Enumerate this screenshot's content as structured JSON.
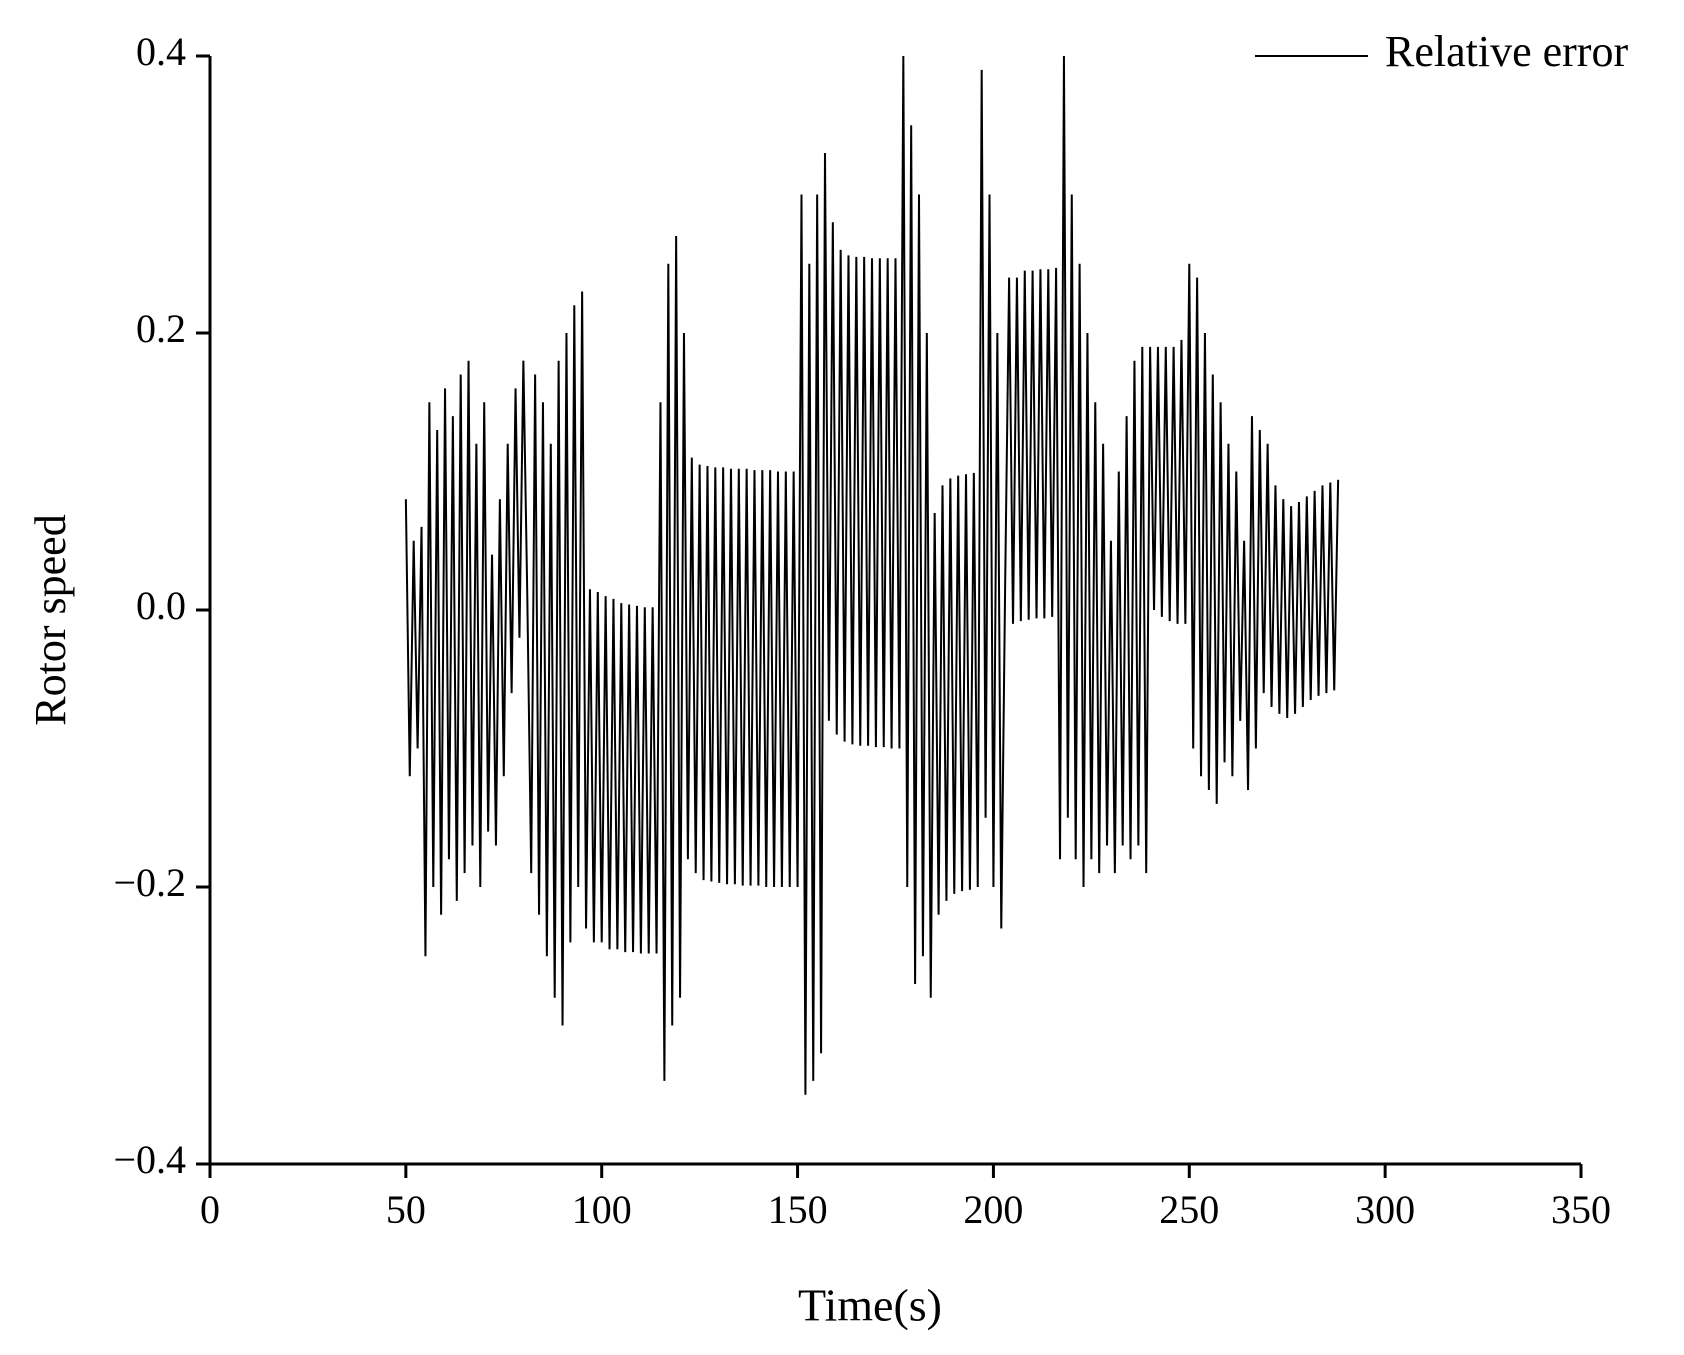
{
  "chart_data": {
    "type": "line",
    "x_label": "Time(s)",
    "y_label": "Rotor speed",
    "xlim": [
      0,
      350
    ],
    "xticks": [
      0,
      50,
      100,
      150,
      200,
      250,
      300,
      350
    ],
    "ylim": [
      -0.4,
      0.4
    ],
    "yticks": [
      {
        "value": -0.4,
        "label": "−0.4"
      },
      {
        "value": -0.2,
        "label": "−0.2"
      },
      {
        "value": 0,
        "label": "0.0"
      },
      0.2,
      0.4
    ],
    "legend": "upper right",
    "x": [
      50,
      51,
      52,
      53,
      54,
      55,
      56,
      57,
      58,
      59,
      60,
      61,
      62,
      63,
      64,
      65,
      66,
      67,
      68,
      69,
      70,
      71,
      72,
      73,
      74,
      75,
      76,
      77,
      78,
      79,
      80,
      81,
      82,
      83,
      84,
      85,
      86,
      87,
      88,
      89,
      90,
      91,
      92,
      93,
      94,
      95,
      96,
      97,
      98,
      99,
      100,
      101,
      102,
      103,
      104,
      105,
      106,
      107,
      108,
      109,
      110,
      111,
      112,
      113,
      114,
      115,
      116,
      117,
      118,
      119,
      120,
      121,
      122,
      123,
      124,
      125,
      126,
      127,
      128,
      129,
      130,
      131,
      132,
      133,
      134,
      135,
      136,
      137,
      138,
      139,
      140,
      141,
      142,
      143,
      144,
      145,
      146,
      147,
      148,
      149,
      150,
      151,
      152,
      153,
      154,
      155,
      156,
      157,
      158,
      159,
      160,
      161,
      162,
      163,
      164,
      165,
      166,
      167,
      168,
      169,
      170,
      171,
      172,
      173,
      174,
      175,
      176,
      177,
      178,
      179,
      180,
      181,
      182,
      183,
      184,
      185,
      186,
      187,
      188,
      189,
      190,
      191,
      192,
      193,
      194,
      195,
      196,
      197,
      198,
      199,
      200,
      201,
      202,
      203,
      204,
      205,
      206,
      207,
      208,
      209,
      210,
      211,
      212,
      213,
      214,
      215,
      216,
      217,
      218,
      219,
      220,
      221,
      222,
      223,
      224,
      225,
      226,
      227,
      228,
      229,
      230,
      231,
      232,
      233,
      234,
      235,
      236,
      237,
      238,
      239,
      240,
      241,
      242,
      243,
      244,
      245,
      246,
      247,
      248,
      249,
      250,
      251,
      252,
      253,
      254,
      255,
      256,
      257,
      258,
      259,
      260,
      261,
      262,
      263,
      264,
      265,
      266,
      267,
      268,
      269,
      270,
      271,
      272,
      273,
      274,
      275,
      276,
      277,
      278,
      279,
      280,
      281,
      282,
      283,
      284,
      285,
      286,
      287,
      288
    ],
    "series": [
      {
        "name": "Relative error",
        "color": "#000000",
        "values": [
          0.08,
          -0.12,
          0.05,
          -0.1,
          0.06,
          -0.25,
          0.15,
          -0.2,
          0.13,
          -0.22,
          0.16,
          -0.18,
          0.14,
          -0.21,
          0.17,
          -0.19,
          0.18,
          -0.17,
          0.12,
          -0.2,
          0.15,
          -0.16,
          0.04,
          -0.17,
          0.08,
          -0.12,
          0.12,
          -0.06,
          0.16,
          -0.02,
          0.18,
          0.01,
          -0.19,
          0.17,
          -0.22,
          0.15,
          -0.25,
          0.12,
          -0.28,
          0.18,
          -0.3,
          0.2,
          -0.24,
          0.22,
          -0.2,
          0.23,
          -0.23,
          0.015,
          -0.24,
          0.013,
          -0.24,
          0.01,
          -0.245,
          0.008,
          -0.245,
          0.005,
          -0.247,
          0.004,
          -0.247,
          0.003,
          -0.248,
          0.002,
          -0.248,
          0.002,
          -0.248,
          0.15,
          -0.34,
          0.25,
          -0.3,
          0.27,
          -0.28,
          0.2,
          -0.18,
          0.11,
          -0.19,
          0.105,
          -0.195,
          0.104,
          -0.196,
          0.103,
          -0.197,
          0.103,
          -0.198,
          0.102,
          -0.198,
          0.102,
          -0.199,
          0.102,
          -0.199,
          0.101,
          -0.199,
          0.101,
          -0.2,
          0.101,
          -0.2,
          0.1,
          -0.2,
          0.1,
          -0.2,
          0.1,
          -0.2,
          0.3,
          -0.35,
          0.25,
          -0.34,
          0.3,
          -0.32,
          0.33,
          -0.08,
          0.28,
          -0.09,
          0.26,
          -0.095,
          0.256,
          -0.097,
          0.255,
          -0.098,
          0.255,
          -0.098,
          0.254,
          -0.099,
          0.254,
          -0.099,
          0.254,
          -0.1,
          0.254,
          -0.1,
          0.4,
          -0.2,
          0.35,
          -0.27,
          0.3,
          -0.25,
          0.2,
          -0.28,
          0.07,
          -0.22,
          0.09,
          -0.21,
          0.095,
          -0.205,
          0.097,
          -0.203,
          0.098,
          -0.202,
          0.099,
          -0.2,
          0.39,
          -0.15,
          0.3,
          -0.2,
          0.2,
          -0.23,
          0.02,
          0.24,
          -0.01,
          0.24,
          -0.008,
          0.245,
          -0.007,
          0.245,
          -0.006,
          0.246,
          -0.006,
          0.246,
          -0.005,
          0.247,
          -0.18,
          0.4,
          -0.15,
          0.3,
          -0.18,
          0.25,
          -0.2,
          0.2,
          -0.18,
          0.15,
          -0.19,
          0.12,
          -0.17,
          0.05,
          -0.19,
          0.1,
          -0.17,
          0.14,
          -0.18,
          0.18,
          -0.17,
          0.19,
          -0.19,
          0.19,
          0.0,
          0.19,
          -0.005,
          0.19,
          -0.008,
          0.19,
          -0.01,
          0.195,
          -0.01,
          0.25,
          -0.1,
          0.24,
          -0.12,
          0.2,
          -0.13,
          0.17,
          -0.14,
          0.15,
          -0.11,
          0.12,
          -0.12,
          0.1,
          -0.08,
          0.05,
          -0.13,
          0.14,
          -0.1,
          0.13,
          -0.06,
          0.12,
          -0.07,
          0.09,
          -0.075,
          0.08,
          -0.078,
          0.075,
          -0.075,
          0.078,
          -0.07,
          0.082,
          -0.065,
          0.086,
          -0.062,
          0.09,
          -0.06,
          0.092,
          -0.058,
          0.094
        ]
      }
    ]
  }
}
